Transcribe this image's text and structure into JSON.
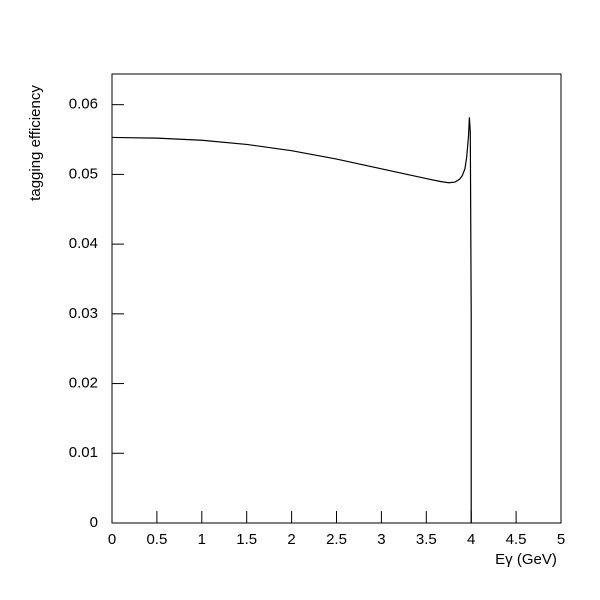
{
  "chart_data": {
    "type": "line",
    "xlabel": "Eγ (GeV)",
    "ylabel": "tagging efficiency",
    "x": [
      0,
      0.5,
      1,
      1.5,
      2,
      2.5,
      3,
      3.25,
      3.5,
      3.65,
      3.75,
      3.82,
      3.87,
      3.9,
      3.93,
      3.95,
      3.97,
      3.98,
      3.99,
      4.0,
      4.0
    ],
    "values": [
      0.0553,
      0.0552,
      0.0549,
      0.0543,
      0.0534,
      0.0522,
      0.0508,
      0.0501,
      0.0494,
      0.049,
      0.0488,
      0.0489,
      0.0493,
      0.0498,
      0.0508,
      0.0525,
      0.0555,
      0.0582,
      0.056,
      0.03,
      0
    ],
    "color": "#000000",
    "xlim": [
      0,
      5
    ],
    "xticks": [
      0,
      0.5,
      1,
      1.5,
      2,
      2.5,
      3,
      3.5,
      4,
      4.5,
      5
    ],
    "ylim": [
      0,
      0.0644
    ],
    "yticks": [
      0,
      0.01,
      0.02,
      0.03,
      0.04,
      0.05,
      0.06
    ]
  }
}
